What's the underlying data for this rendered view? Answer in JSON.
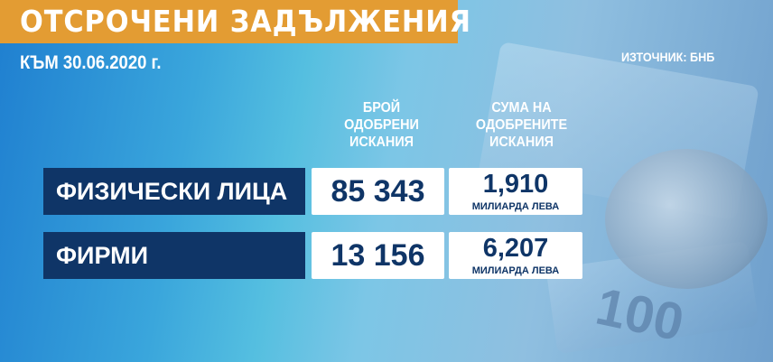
{
  "header": {
    "title": "ОТСРОЧЕНИ ЗАДЪЛЖЕНИЯ",
    "subtitle": "КЪМ 30.06.2020 г.",
    "source": "ИЗТОЧНИК: БНБ"
  },
  "columns": {
    "count": "БРОЙ ОДОБРЕНИ ИСКАНИЯ",
    "amount": "СУМА НА ОДОБРЕНИТЕ ИСКАНИЯ"
  },
  "rows": [
    {
      "label": "ФИЗИЧЕСКИ ЛИЦА",
      "count": "85 343",
      "amount": "1,910",
      "unit": "МИЛИАРДА ЛЕВА"
    },
    {
      "label": "ФИРМИ",
      "count": "13 156",
      "amount": "6,207",
      "unit": "МИЛИАРДА ЛЕВА"
    }
  ],
  "background": {
    "banknote_text": "100"
  },
  "colors": {
    "title_bar": "#e39c33",
    "label_box": "#0f3567",
    "value_text": "#0f3567"
  }
}
